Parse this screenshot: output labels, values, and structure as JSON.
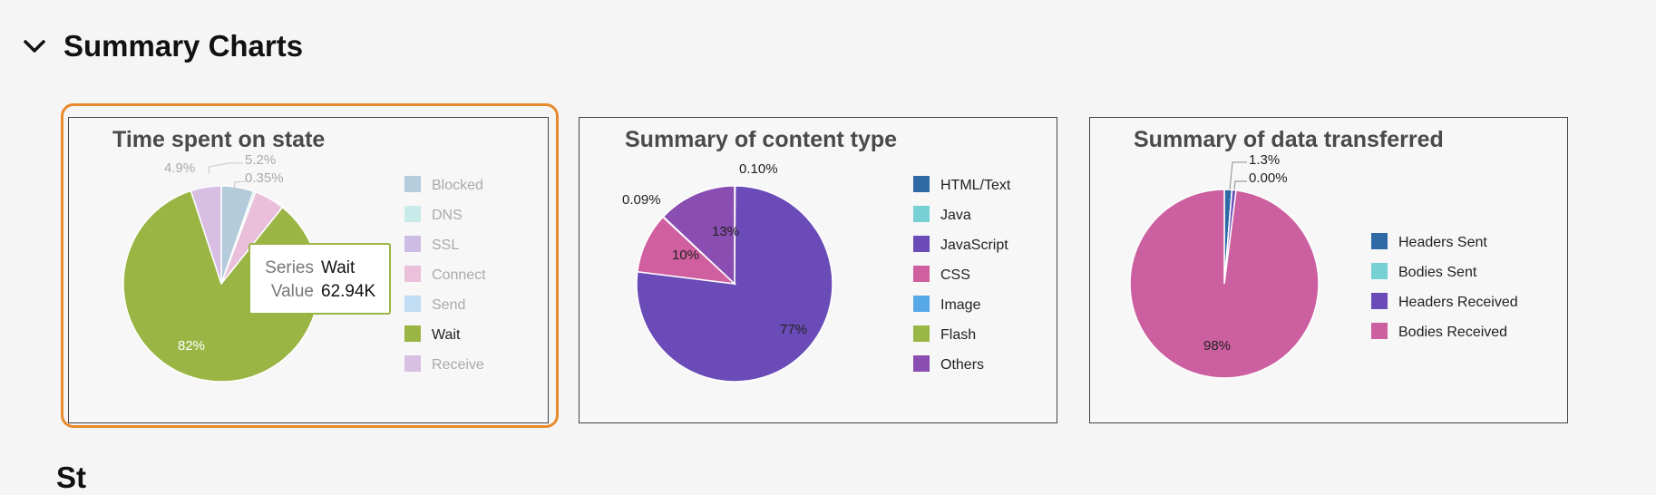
{
  "section": {
    "title": "Summary Charts",
    "collapse_icon": "chevron-down-icon",
    "next_title": "St"
  },
  "tooltip": {
    "series_key": "Series",
    "series_value": "Wait",
    "value_key": "Value",
    "value_value": "62.94K"
  },
  "chart_data": [
    {
      "type": "pie",
      "title": "Time spent on state",
      "highlighted": "Wait",
      "categories": [
        "Blocked",
        "DNS",
        "SSL",
        "Connect",
        "Send",
        "Wait",
        "Receive"
      ],
      "values": [
        5.2,
        0.35,
        0,
        4.9,
        0,
        82,
        4.9
      ],
      "labels": [
        "5.2%",
        "0.35%",
        "",
        "",
        "",
        "82%",
        "4.9%"
      ],
      "colors": [
        "#a9c4d8",
        "#bfe9e8",
        "#c6b3e0",
        "#e7b6d5",
        "#b6d8f2",
        "#9bb545",
        "#d3b5df"
      ],
      "legend": "right"
    },
    {
      "type": "pie",
      "title": "Summary of content type",
      "categories": [
        "HTML/Text",
        "Java",
        "JavaScript",
        "CSS",
        "Image",
        "Flash",
        "Others"
      ],
      "values": [
        0.1,
        0,
        77,
        10,
        0.09,
        0,
        13
      ],
      "labels": [
        "0.10%",
        "",
        "77%",
        "10%",
        "0.09%",
        "",
        "13%"
      ],
      "colors": [
        "#2f6aa7",
        "#76d0d4",
        "#6a4bb7",
        "#d05fa0",
        "#57a8e6",
        "#98b745",
        "#8a4db1"
      ],
      "legend": "right"
    },
    {
      "type": "pie",
      "title": "Summary of data transferred",
      "categories": [
        "Headers Sent",
        "Bodies Sent",
        "Headers Received",
        "Bodies Received"
      ],
      "values": [
        1.3,
        0.001,
        0.7,
        98
      ],
      "labels": [
        "1.3%",
        "0.00%",
        "",
        "98%"
      ],
      "colors": [
        "#2f6aa7",
        "#76d0d4",
        "#6a4bb7",
        "#cc5fa0"
      ],
      "legend": "right"
    }
  ]
}
